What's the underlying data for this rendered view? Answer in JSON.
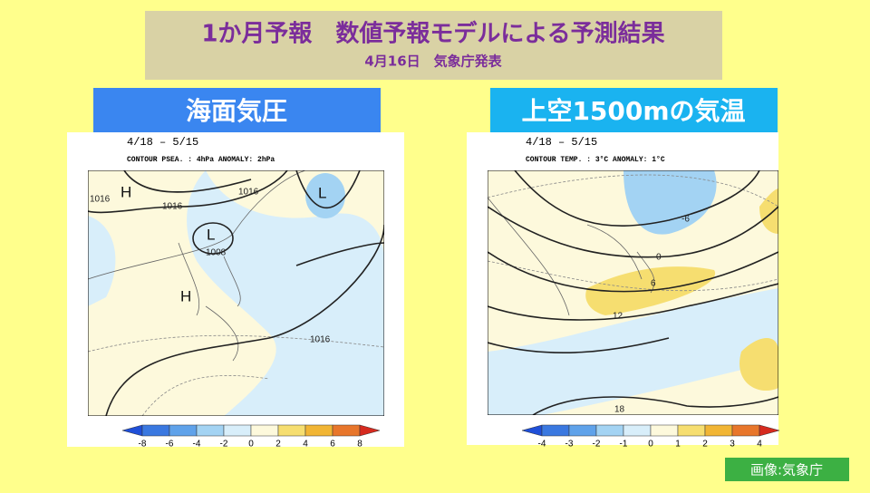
{
  "header": {
    "title": "1か月予報　数値予報モデルによる予測結果",
    "subtitle": "4月16日　気象庁発表"
  },
  "panels": [
    {
      "heading": "海面気圧",
      "period": "4/18 – 5/15",
      "contour_note": "CONTOUR PSEA. : 4hPa    ANOMALY: 2hPa",
      "contour_labels": [
        1016,
        1016,
        1016,
        1008,
        1016
      ],
      "systems": [
        "H",
        "H",
        "L",
        "L"
      ],
      "colorbar_ticks": [
        -8,
        -6,
        -4,
        -2,
        0,
        2,
        4,
        6,
        8
      ],
      "colorbar_colors": [
        "#1f4fd8",
        "#3a78e0",
        "#5fa2ea",
        "#a3d3f3",
        "#d8eefa",
        "#fdf9dc",
        "#f6de70",
        "#f1b534",
        "#e8762b",
        "#d62a1f"
      ]
    },
    {
      "heading": "上空1500mの気温",
      "period": "4/18 – 5/15",
      "contour_note": "CONTOUR TEMP. : 3°C    ANOMALY: 1°C",
      "contour_labels": [
        -6,
        0,
        6,
        12,
        18
      ],
      "colorbar_ticks": [
        -4,
        -3,
        -2,
        -1,
        0,
        1,
        2,
        3,
        4
      ],
      "colorbar_colors": [
        "#1f4fd8",
        "#3a78e0",
        "#5fa2ea",
        "#a3d3f3",
        "#d8eefa",
        "#fdf9dc",
        "#f6de70",
        "#f1b534",
        "#e8762b",
        "#d62a1f"
      ]
    }
  ],
  "credit": "画像:気象庁"
}
